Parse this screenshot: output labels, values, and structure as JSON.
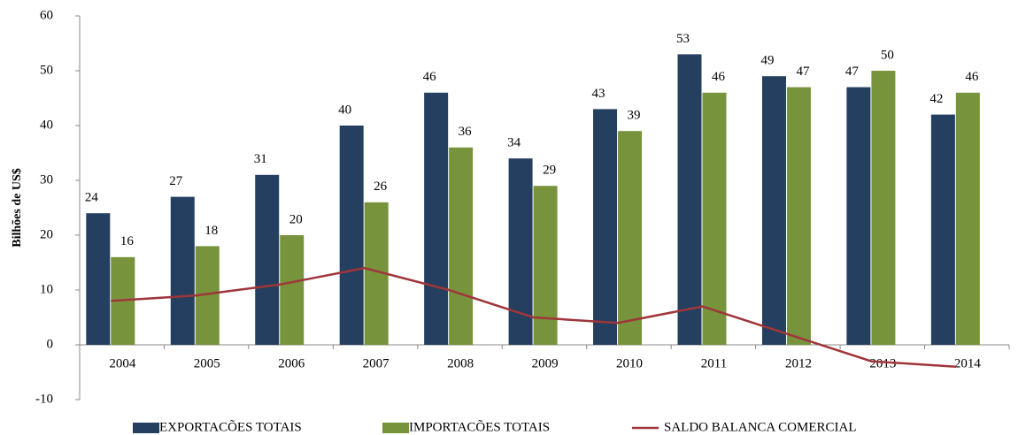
{
  "chart_data": {
    "type": "bar",
    "ylabel": "Bilhões de US$",
    "categories": [
      "2004",
      "2005",
      "2006",
      "2007",
      "2008",
      "2009",
      "2010",
      "2011",
      "2012",
      "2013",
      "2014"
    ],
    "series": [
      {
        "name": "EXPORTACÕES TOTAIS",
        "type": "bar",
        "color": "#243f60",
        "values": [
          24,
          27,
          31,
          40,
          46,
          34,
          43,
          53,
          49,
          47,
          42
        ]
      },
      {
        "name": "IMPORTACÕES TOTAIS",
        "type": "bar",
        "color": "#77933c",
        "values": [
          16,
          18,
          20,
          26,
          36,
          29,
          39,
          46,
          47,
          50,
          46
        ]
      },
      {
        "name": "SALDO BALANCA COMERCIAL",
        "type": "line",
        "color": "#a0353a",
        "values": [
          8,
          9,
          11,
          14,
          10,
          5,
          4,
          7,
          2,
          -3,
          -4
        ]
      }
    ],
    "ylim": [
      -10,
      60
    ],
    "yticks": [
      -10,
      0,
      10,
      20,
      30,
      40,
      50,
      60
    ],
    "legend": "bottom",
    "grid": false
  }
}
